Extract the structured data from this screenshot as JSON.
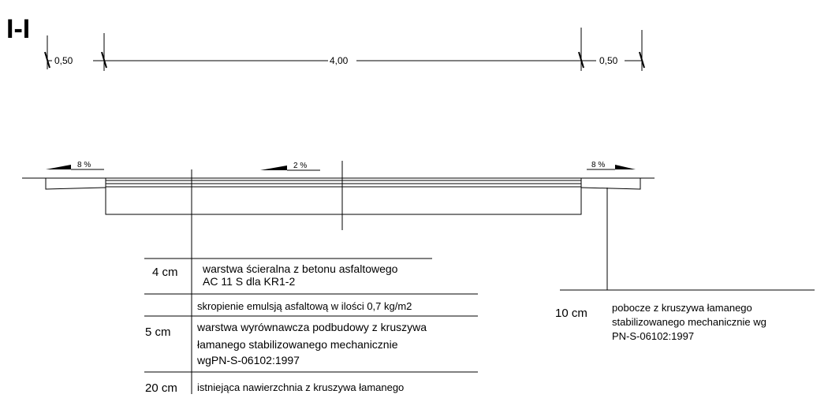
{
  "section_label": "I-I",
  "dimensions": {
    "left": "0,50",
    "center": "4,00",
    "right": "0,50"
  },
  "slopes": {
    "left": "8 %",
    "center": "2 %",
    "right": "8 %"
  },
  "layers": [
    {
      "thickness": "4 cm",
      "line1": "warstwa ścieralna z betonu asfaltowego",
      "line2": "AC 11 S  dla KR1-2"
    },
    {
      "thickness": "",
      "line1": "skropienie emulsją asfaltową w ilości 0,7 kg/m2"
    },
    {
      "thickness": "5 cm",
      "line1": "warstwa wyrównawcza podbudowy z kruszywa",
      "line2": "łamanego stabilizowanego mechanicznie",
      "line3": "wgPN-S-06102:1997"
    },
    {
      "thickness": "20 cm",
      "line1": "istniejąca nawierzchnia z kruszywa łamanego"
    }
  ],
  "shoulder": {
    "thickness": "10 cm",
    "line1": "pobocze z kruszywa łamanego",
    "line2": "stabilizowanego mechanicznie wg",
    "line3": "PN-S-06102:1997"
  }
}
